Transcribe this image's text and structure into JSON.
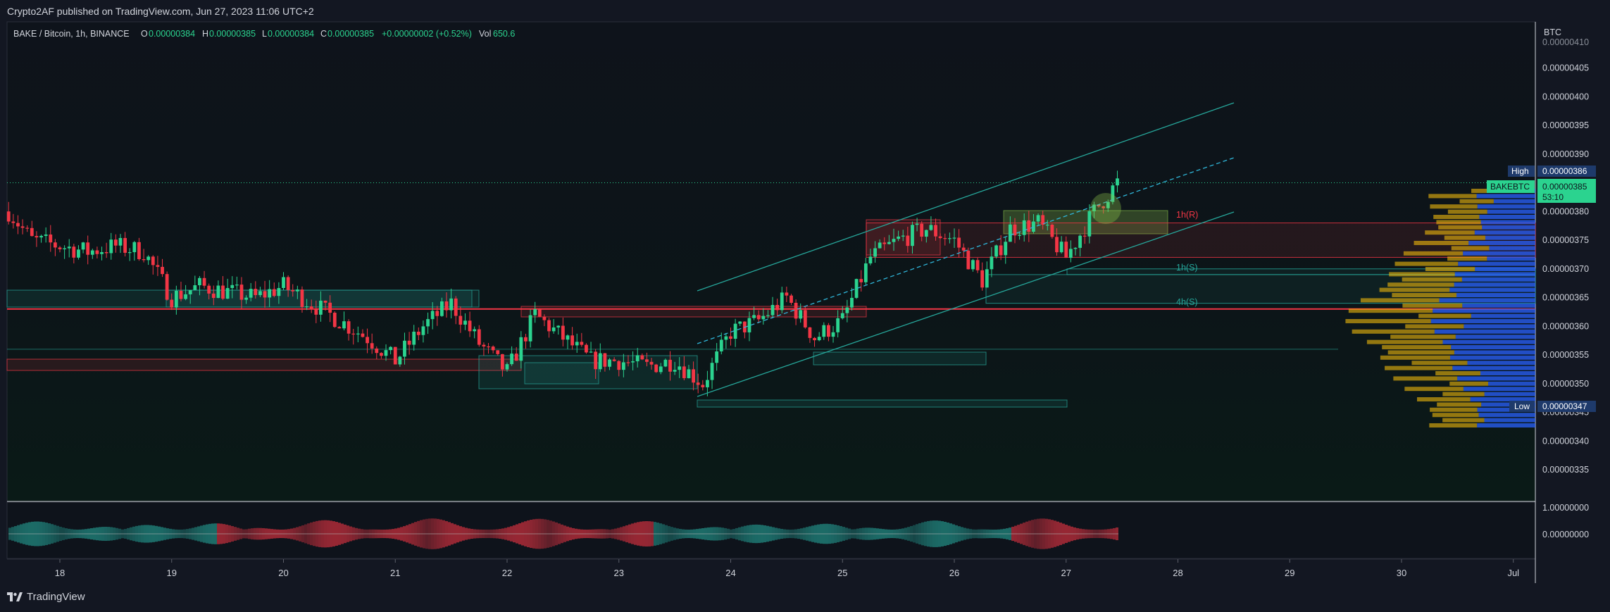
{
  "header": {
    "published_text": "Crypto2AF published on TradingView.com, Jun 27, 2023 11:06 UTC+2"
  },
  "footer": {
    "brand": "TradingView"
  },
  "colors": {
    "background": "#131722",
    "chart_bg": "#0f141c",
    "up": "#26a69a",
    "up_bright": "#2bd38f",
    "down": "#f23645",
    "label_green": "#2bd38f",
    "label_navy": "#1e3a6b",
    "axis_text": "#d1d4dc"
  },
  "legend": {
    "symbol": "BAKE / Bitcoin, 1h, BINANCE",
    "o_label": "O",
    "o_value": "0.00000384",
    "h_label": "H",
    "h_value": "0.00000385",
    "l_label": "L",
    "l_value": "0.00000384",
    "c_label": "C",
    "c_value": "0.00000385",
    "change": "+0.00000002 (+0.52%)",
    "vol_label": "Vol",
    "vol_value": "650.6"
  },
  "price_axis": {
    "currency": "BTC",
    "ticks": [
      "0.00000405",
      "0.00000400",
      "0.00000395",
      "0.00000390",
      "0.00000380",
      "0.00000375",
      "0.00000370",
      "0.00000365",
      "0.00000360",
      "0.00000355",
      "0.00000350",
      "0.00000345",
      "0.00000340",
      "0.00000335"
    ],
    "partial_top": "0.00000410",
    "high_label": "High",
    "high_value": "0.00000386",
    "low_label": "Low",
    "low_value": "0.00000347",
    "current_symbol": "BAKEBTC",
    "current_value": "0.00000385",
    "countdown": "53:10"
  },
  "time_axis": {
    "ticks": [
      "18",
      "19",
      "20",
      "21",
      "22",
      "23",
      "24",
      "25",
      "26",
      "27",
      "28",
      "29",
      "30",
      "Jul"
    ]
  },
  "annotations": {
    "r_1h": "1h(R)",
    "s_1h": "1h(S)",
    "s_4h": "4h(S)"
  },
  "oscillator": {
    "ticks": [
      "1.00000000",
      "0.00000000"
    ]
  },
  "chart_data": {
    "type": "candlestick",
    "symbol": "BAKE / Bitcoin",
    "timeframe": "1h",
    "exchange": "BINANCE",
    "y_unit": "BTC",
    "ylim": [
      3.31e-06,
      4.11e-06
    ],
    "x_range": [
      "Jun 18",
      "Jul 1"
    ],
    "price_path": [
      [
        "Jun 17 13:00",
        3.8e-06
      ],
      [
        "Jun 17 18:00",
        3.75e-06
      ],
      [
        "Jun 18 00:00",
        3.74e-06
      ],
      [
        "Jun 18 06:00",
        3.73e-06
      ],
      [
        "Jun 18 12:00",
        3.74e-06
      ],
      [
        "Jun 18 18:00",
        3.73e-06
      ],
      [
        "Jun 19 00:00",
        3.65e-06
      ],
      [
        "Jun 19 06:00",
        3.67e-06
      ],
      [
        "Jun 19 12:00",
        3.66e-06
      ],
      [
        "Jun 19 18:00",
        3.65e-06
      ],
      [
        "Jun 20 00:00",
        3.67e-06
      ],
      [
        "Jun 20 06:00",
        3.64e-06
      ],
      [
        "Jun 20 12:00",
        3.61e-06
      ],
      [
        "Jun 20 18:00",
        3.58e-06
      ],
      [
        "Jun 21 00:00",
        3.54e-06
      ],
      [
        "Jun 21 06:00",
        3.6e-06
      ],
      [
        "Jun 21 12:00",
        3.64e-06
      ],
      [
        "Jun 21 18:00",
        3.57e-06
      ],
      [
        "Jun 22 00:00",
        3.52e-06
      ],
      [
        "Jun 22 06:00",
        3.62e-06
      ],
      [
        "Jun 22 12:00",
        3.58e-06
      ],
      [
        "Jun 22 18:00",
        3.54e-06
      ],
      [
        "Jun 23 00:00",
        3.54e-06
      ],
      [
        "Jun 23 06:00",
        3.53e-06
      ],
      [
        "Jun 23 12:00",
        3.54e-06
      ],
      [
        "Jun 23 18:00",
        3.5e-06
      ],
      [
        "Jun 24 00:00",
        3.59e-06
      ],
      [
        "Jun 24 06:00",
        3.61e-06
      ],
      [
        "Jun 24 12:00",
        3.65e-06
      ],
      [
        "Jun 24 18:00",
        3.58e-06
      ],
      [
        "Jun 25 00:00",
        3.61e-06
      ],
      [
        "Jun 25 06:00",
        3.72e-06
      ],
      [
        "Jun 25 12:00",
        3.75e-06
      ],
      [
        "Jun 25 18:00",
        3.77e-06
      ],
      [
        "Jun 26 00:00",
        3.75e-06
      ],
      [
        "Jun 26 06:00",
        3.68e-06
      ],
      [
        "Jun 26 12:00",
        3.77e-06
      ],
      [
        "Jun 26 18:00",
        3.78e-06
      ],
      [
        "Jun 27 00:00",
        3.72e-06
      ],
      [
        "Jun 27 06:00",
        3.8e-06
      ],
      [
        "Jun 27 11:00",
        3.85e-06
      ]
    ],
    "zones": [
      {
        "label": "1h(R)",
        "top": 3.78e-06,
        "bottom": 3.72e-06
      },
      {
        "label": "1h(S)",
        "top": 3.7e-06,
        "bottom": 3.69e-06
      },
      {
        "label": "4h(S)",
        "top": 3.69e-06,
        "bottom": 3.64e-06
      }
    ],
    "horizontal_level": 3.63e-06,
    "high": 3.86e-06,
    "low": 3.47e-06,
    "last": 3.85e-06
  }
}
